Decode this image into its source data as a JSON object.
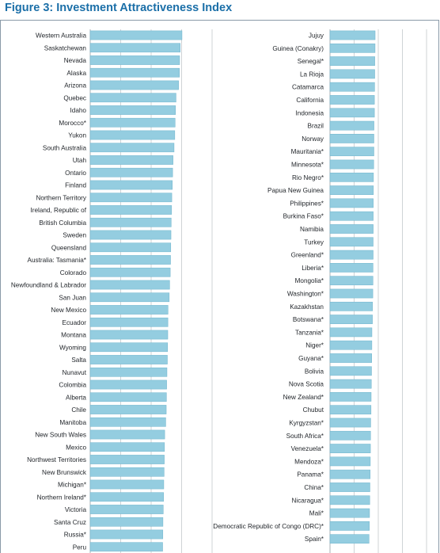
{
  "chart_data": [
    {
      "type": "bar",
      "orientation": "horizontal",
      "title": "Figure 3: Investment Attractiveness Index",
      "xlim": [
        0,
        100
      ],
      "grid": true,
      "categories": [
        "Western Australia",
        "Saskatchewan",
        "Nevada",
        "Alaska",
        "Arizona",
        "Quebec",
        "Idaho",
        "Morocco*",
        "Yukon",
        "South Australia",
        "Utah",
        "Ontario",
        "Finland",
        "Northern Territory",
        "Ireland, Republic of",
        "British Columbia",
        "Sweden",
        "Queensland",
        "Australia: Tasmania*",
        "Colorado",
        "Newfoundland & Labrador",
        "San Juan",
        "New Mexico",
        "Ecuador",
        "Montana",
        "Wyoming",
        "Salta",
        "Nunavut",
        "Colombia",
        "Alberta",
        "Chile",
        "Manitoba",
        "New South Wales",
        "Mexico",
        "Northwest Territories",
        "New Brunswick",
        "Michigan*",
        "Northern Ireland*",
        "Victoria",
        "Santa Cruz",
        "Russia*",
        "Peru"
      ],
      "values": [
        89.2,
        87.5,
        86.9,
        86.7,
        85.9,
        83.4,
        82.9,
        82.5,
        82.2,
        81.5,
        80.5,
        80.1,
        79.8,
        79.3,
        79.1,
        78.7,
        78.5,
        78.3,
        78.1,
        77.8,
        77.2,
        76.8,
        75.6,
        75.5,
        75.4,
        75.2,
        75.0,
        74.6,
        74.3,
        74.1,
        73.9,
        73.4,
        72.4,
        72.2,
        72.0,
        71.8,
        71.5,
        71.3,
        71.0,
        70.7,
        70.6,
        70.4
      ]
    },
    {
      "type": "bar",
      "orientation": "horizontal",
      "xlim": [
        0,
        100
      ],
      "grid": true,
      "categories": [
        "Jujuy",
        "Guinea (Conakry)",
        "Senegal*",
        "La Rioja",
        "Catamarca",
        "California",
        "Indonesia",
        "Brazil",
        "Norway",
        "Mauritania*",
        "Minnesota*",
        "Rio Negro*",
        "Papua New Guinea",
        "Philippines*",
        "Burkina Faso*",
        "Namibia",
        "Turkey",
        "Greenland*",
        "Liberia*",
        "Mongolia*",
        "Washington*",
        "Kazakhstan",
        "Botswana*",
        "Tanzania*",
        "Niger*",
        "Guyana*",
        "Bolivia",
        "Nova Scotia",
        "New Zealand*",
        "Chubut",
        "Kyrgyzstan*",
        "South Africa*",
        "Venezuela*",
        "Mendoza*",
        "Panama*",
        "China*",
        "Nicaragua*",
        "Mali*",
        "Democratic Republic of Congo (DRC)*",
        "Spain*"
      ],
      "values": [
        70.4,
        70.3,
        69.9,
        69.8,
        69.6,
        69.3,
        69.3,
        68.6,
        68.5,
        68.5,
        68.2,
        67.8,
        67.7,
        67.5,
        67.4,
        67.4,
        67.3,
        67.3,
        67.1,
        67.0,
        66.8,
        66.3,
        66.2,
        65.4,
        65.3,
        65.1,
        64.8,
        64.5,
        64.2,
        64.0,
        63.5,
        63.3,
        63.1,
        62.9,
        62.7,
        62.3,
        62.0,
        61.7,
        61.4,
        60.9
      ]
    }
  ]
}
